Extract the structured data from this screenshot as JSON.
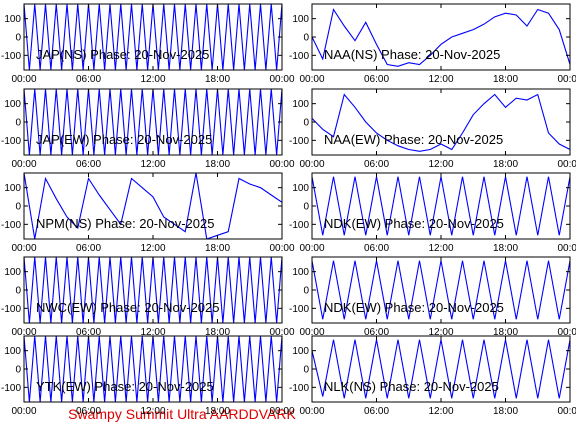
{
  "chart_data": [
    {
      "type": "line",
      "title": "JAP(NS) Phase: 20-Nov-2025",
      "color": "#0000ff",
      "x": [
        0,
        0.5,
        1,
        1.5,
        2,
        2.5,
        3,
        3.5,
        4,
        4.5,
        5,
        5.5,
        6,
        6.5,
        7,
        7.5,
        8,
        8.5,
        9,
        9.5,
        10,
        10.5,
        11,
        11.5,
        12,
        12.5,
        13,
        13.5,
        14,
        14.5,
        15,
        15.5,
        16,
        16.5,
        17,
        17.5,
        18,
        18.5,
        19,
        19.5,
        20,
        20.5,
        21,
        21.5,
        22,
        22.5,
        23,
        23.5,
        24
      ],
      "values": [
        180,
        -180,
        180,
        -180,
        180,
        -180,
        180,
        -180,
        180,
        -180,
        180,
        -180,
        180,
        -180,
        180,
        -180,
        180,
        -180,
        180,
        -180,
        180,
        -180,
        180,
        -180,
        180,
        -180,
        180,
        -180,
        180,
        -180,
        180,
        -180,
        180,
        -180,
        180,
        -180,
        180,
        -180,
        180,
        -180,
        180,
        -180,
        180,
        -180,
        180,
        -180,
        180,
        -180,
        180
      ],
      "xlim": [
        0,
        24
      ],
      "xticks": [
        {
          "value": 0,
          "label": "00:00"
        },
        {
          "value": 6,
          "label": "06:00"
        },
        {
          "value": 12,
          "label": "12:00"
        },
        {
          "value": 18,
          "label": "18:00"
        },
        {
          "value": 24,
          "label": "00:00"
        }
      ],
      "ylim": [
        -180,
        180
      ],
      "yticks": [
        -100,
        0,
        100
      ]
    },
    {
      "type": "line",
      "title": "NAA(NS) Phase: 20-Nov-2025",
      "color": "#0000ff",
      "x": [
        0,
        1,
        2,
        3,
        4,
        5,
        6,
        7,
        8,
        9,
        10,
        11,
        12,
        13,
        14,
        15,
        16,
        17,
        18,
        19,
        20,
        21,
        22,
        23,
        24
      ],
      "values": [
        0,
        -120,
        150,
        60,
        -20,
        80,
        -40,
        -150,
        -160,
        -140,
        -150,
        -100,
        -40,
        0,
        20,
        40,
        70,
        110,
        130,
        120,
        60,
        150,
        130,
        40,
        -150
      ],
      "xlim": [
        0,
        24
      ],
      "xticks": [
        {
          "value": 0,
          "label": "00:00"
        },
        {
          "value": 6,
          "label": "06:00"
        },
        {
          "value": 12,
          "label": "12:00"
        },
        {
          "value": 18,
          "label": "18:00"
        },
        {
          "value": 24,
          "label": "00:00"
        }
      ],
      "ylim": [
        -180,
        180
      ],
      "yticks": [
        -100,
        0,
        100
      ]
    },
    {
      "type": "line",
      "title": "JAP(EW) Phase: 20-Nov-2025",
      "color": "#0000ff",
      "x": [
        0,
        0.5,
        1,
        1.5,
        2,
        2.5,
        3,
        3.5,
        4,
        4.5,
        5,
        5.5,
        6,
        6.5,
        7,
        7.5,
        8,
        8.5,
        9,
        9.5,
        10,
        10.5,
        11,
        11.5,
        12,
        12.5,
        13,
        13.5,
        14,
        14.5,
        15,
        15.5,
        16,
        16.5,
        17,
        17.5,
        18,
        18.5,
        19,
        19.5,
        20,
        20.5,
        21,
        21.5,
        22,
        22.5,
        23,
        23.5,
        24
      ],
      "values": [
        180,
        -180,
        180,
        -180,
        180,
        -180,
        180,
        -180,
        180,
        -180,
        180,
        -180,
        180,
        -180,
        180,
        -180,
        180,
        -180,
        180,
        -180,
        180,
        -180,
        180,
        -180,
        180,
        -180,
        180,
        -180,
        180,
        -180,
        180,
        -180,
        180,
        -180,
        180,
        -180,
        180,
        -180,
        180,
        -180,
        180,
        -180,
        180,
        -180,
        180,
        -180,
        180,
        -180,
        180
      ],
      "xlim": [
        0,
        24
      ],
      "xticks": [
        {
          "value": 0,
          "label": "00:00"
        },
        {
          "value": 6,
          "label": "06:00"
        },
        {
          "value": 12,
          "label": "12:00"
        },
        {
          "value": 18,
          "label": "18:00"
        },
        {
          "value": 24,
          "label": "00:00"
        }
      ],
      "ylim": [
        -180,
        180
      ],
      "yticks": [
        -100,
        0,
        100
      ]
    },
    {
      "type": "line",
      "title": "NAA(EW) Phase: 20-Nov-2025",
      "color": "#0000ff",
      "x": [
        0,
        1,
        2,
        3,
        4,
        5,
        6,
        7,
        8,
        9,
        10,
        11,
        12,
        13,
        14,
        15,
        16,
        17,
        18,
        19,
        20,
        21,
        22,
        23,
        24
      ],
      "values": [
        20,
        -40,
        -80,
        150,
        80,
        0,
        -60,
        -100,
        -130,
        -150,
        -160,
        -150,
        -120,
        -150,
        -60,
        40,
        100,
        150,
        80,
        130,
        120,
        150,
        -60,
        -120,
        -150
      ],
      "xlim": [
        0,
        24
      ],
      "xticks": [
        {
          "value": 0,
          "label": "00:00"
        },
        {
          "value": 6,
          "label": "06:00"
        },
        {
          "value": 12,
          "label": "12:00"
        },
        {
          "value": 18,
          "label": "18:00"
        },
        {
          "value": 24,
          "label": "00:00"
        }
      ],
      "ylim": [
        -180,
        180
      ],
      "yticks": [
        -100,
        0,
        100
      ]
    },
    {
      "type": "line",
      "title": "NPM(NS) Phase: 20-Nov-2025",
      "color": "#0000ff",
      "x": [
        0,
        1,
        2,
        3,
        4,
        5,
        6,
        7,
        8,
        9,
        10,
        11,
        12,
        13,
        14,
        15,
        16,
        17,
        18,
        19,
        20,
        21,
        22,
        23,
        24
      ],
      "values": [
        180,
        -180,
        150,
        40,
        -60,
        -120,
        150,
        60,
        -20,
        -100,
        150,
        100,
        50,
        -60,
        -100,
        -140,
        180,
        -180,
        -160,
        -140,
        150,
        120,
        100,
        60,
        20
      ],
      "xlim": [
        0,
        24
      ],
      "xticks": [
        {
          "value": 0,
          "label": "00:00"
        },
        {
          "value": 6,
          "label": "06:00"
        },
        {
          "value": 12,
          "label": "12:00"
        },
        {
          "value": 18,
          "label": "18:00"
        },
        {
          "value": 24,
          "label": "00:00"
        }
      ],
      "ylim": [
        -180,
        180
      ],
      "yticks": [
        -100,
        0,
        100
      ]
    },
    {
      "type": "line",
      "title": "NDK(EW) Phase: 20-Nov-2025",
      "color": "#0000ff",
      "x": [
        0,
        1,
        2,
        3,
        4,
        5,
        6,
        7,
        8,
        9,
        10,
        11,
        12,
        13,
        14,
        15,
        16,
        17,
        18,
        19,
        20,
        21,
        22,
        23,
        24
      ],
      "values": [
        160,
        -160,
        160,
        -160,
        160,
        -160,
        160,
        -160,
        160,
        -160,
        160,
        -160,
        160,
        -160,
        160,
        -160,
        160,
        -160,
        160,
        -160,
        160,
        -160,
        160,
        -160,
        160
      ],
      "xlim": [
        0,
        24
      ],
      "xticks": [
        {
          "value": 0,
          "label": "00:00"
        },
        {
          "value": 6,
          "label": "06:00"
        },
        {
          "value": 12,
          "label": "12:00"
        },
        {
          "value": 18,
          "label": "18:00"
        },
        {
          "value": 24,
          "label": "00:00"
        }
      ],
      "ylim": [
        -180,
        180
      ],
      "yticks": [
        -100,
        0,
        100
      ]
    },
    {
      "type": "line",
      "title": "NWC(EW) Phase: 20-Nov-2025",
      "color": "#0000ff",
      "x": [
        0,
        0.5,
        1,
        1.5,
        2,
        2.5,
        3,
        3.5,
        4,
        4.5,
        5,
        5.5,
        6,
        6.5,
        7,
        7.5,
        8,
        8.5,
        9,
        9.5,
        10,
        10.5,
        11,
        11.5,
        12,
        12.5,
        13,
        13.5,
        14,
        14.5,
        15,
        15.5,
        16,
        16.5,
        17,
        17.5,
        18,
        18.5,
        19,
        19.5,
        20,
        20.5,
        21,
        21.5,
        22,
        22.5,
        23,
        23.5,
        24
      ],
      "values": [
        180,
        -180,
        180,
        -180,
        180,
        -180,
        180,
        -180,
        180,
        -180,
        180,
        -180,
        180,
        -180,
        180,
        -180,
        180,
        -180,
        180,
        -180,
        180,
        -180,
        180,
        -180,
        180,
        -180,
        180,
        -180,
        180,
        -180,
        180,
        -180,
        180,
        -180,
        180,
        -180,
        180,
        -180,
        180,
        -180,
        180,
        -180,
        180,
        -180,
        180,
        -180,
        180,
        -180,
        180
      ],
      "xlim": [
        0,
        24
      ],
      "xticks": [
        {
          "value": 0,
          "label": "00:00"
        },
        {
          "value": 6,
          "label": "06:00"
        },
        {
          "value": 12,
          "label": "12:00"
        },
        {
          "value": 18,
          "label": "18:00"
        },
        {
          "value": 24,
          "label": "00:00"
        }
      ],
      "ylim": [
        -180,
        180
      ],
      "yticks": [
        -100,
        0,
        100
      ]
    },
    {
      "type": "line",
      "title": "NDK(EW) Phase: 20-Nov-2025",
      "color": "#0000ff",
      "x": [
        0,
        1,
        2,
        3,
        4,
        5,
        6,
        7,
        8,
        9,
        10,
        11,
        12,
        13,
        14,
        15,
        16,
        17,
        18,
        19,
        20,
        21,
        22,
        23,
        24
      ],
      "values": [
        160,
        -160,
        160,
        -160,
        160,
        -160,
        160,
        -160,
        160,
        -160,
        160,
        -160,
        160,
        -160,
        160,
        -160,
        160,
        -160,
        160,
        -160,
        160,
        -160,
        160,
        -160,
        160
      ],
      "xlim": [
        0,
        24
      ],
      "xticks": [
        {
          "value": 0,
          "label": "00:00"
        },
        {
          "value": 6,
          "label": "06:00"
        },
        {
          "value": 12,
          "label": "12:00"
        },
        {
          "value": 18,
          "label": "18:00"
        },
        {
          "value": 24,
          "label": "00:00"
        }
      ],
      "ylim": [
        -180,
        180
      ],
      "yticks": [
        -100,
        0,
        100
      ]
    },
    {
      "type": "line",
      "title": "YTK(EW) Phase: 20-Nov-2025",
      "color": "#0000ff",
      "x": [
        0,
        0.5,
        1,
        1.5,
        2,
        2.5,
        3,
        3.5,
        4,
        4.5,
        5,
        5.5,
        6,
        6.5,
        7,
        7.5,
        8,
        8.5,
        9,
        9.5,
        10,
        10.5,
        11,
        11.5,
        12,
        12.5,
        13,
        13.5,
        14,
        14.5,
        15,
        15.5,
        16,
        16.5,
        17,
        17.5,
        18,
        18.5,
        19,
        19.5,
        20,
        20.5,
        21,
        21.5,
        22,
        22.5,
        23,
        23.5,
        24
      ],
      "values": [
        180,
        -180,
        180,
        -180,
        180,
        -180,
        180,
        -180,
        180,
        -180,
        180,
        -180,
        180,
        -180,
        180,
        -180,
        180,
        -180,
        180,
        -180,
        180,
        -180,
        180,
        -180,
        180,
        -180,
        180,
        -180,
        180,
        -180,
        180,
        -180,
        180,
        -180,
        180,
        -180,
        180,
        -180,
        180,
        -180,
        180,
        -180,
        180,
        -180,
        180,
        -180,
        180,
        -180,
        180
      ],
      "xlim": [
        0,
        24
      ],
      "xticks": [
        {
          "value": 0,
          "label": "00:00"
        },
        {
          "value": 6,
          "label": "06:00"
        },
        {
          "value": 12,
          "label": "12:00"
        },
        {
          "value": 18,
          "label": "18:00"
        },
        {
          "value": 24,
          "label": "00:00"
        }
      ],
      "ylim": [
        -180,
        180
      ],
      "yticks": [
        -100,
        0,
        100
      ]
    },
    {
      "type": "line",
      "title": "NLK(NS) Phase: 20-Nov-2025",
      "color": "#0000ff",
      "x": [
        0,
        1,
        2,
        3,
        4,
        5,
        6,
        7,
        8,
        9,
        10,
        11,
        12,
        13,
        14,
        15,
        16,
        17,
        18,
        19,
        20,
        21,
        22,
        23,
        24
      ],
      "values": [
        100,
        -150,
        160,
        -160,
        160,
        -160,
        160,
        -160,
        160,
        -160,
        160,
        -160,
        160,
        -160,
        160,
        -160,
        160,
        -160,
        160,
        -160,
        160,
        -160,
        160,
        -160,
        160
      ],
      "xlim": [
        0,
        24
      ],
      "xticks": [
        {
          "value": 0,
          "label": "00:00"
        },
        {
          "value": 6,
          "label": "06:00"
        },
        {
          "value": 12,
          "label": "12:00"
        },
        {
          "value": 18,
          "label": "18:00"
        },
        {
          "value": 24,
          "label": "00:00"
        }
      ],
      "ylim": [
        -180,
        180
      ],
      "yticks": [
        -100,
        0,
        100
      ]
    }
  ],
  "footer": "Swampy Summit Ultra AARDDVARK"
}
